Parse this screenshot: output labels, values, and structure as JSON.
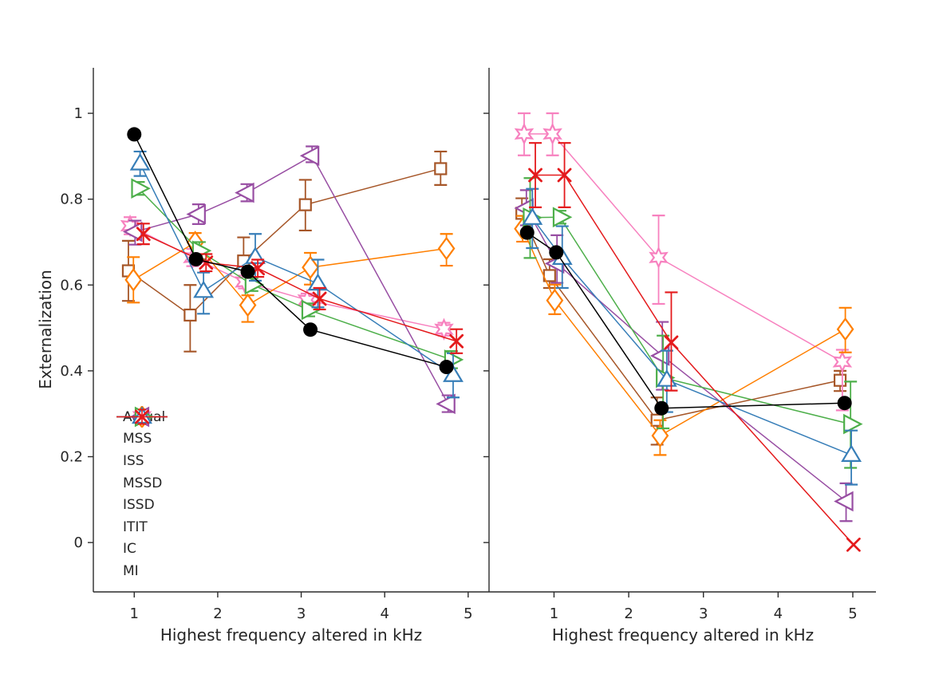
{
  "figure": {
    "ylabel": "Externalization",
    "xlabel": "Highest frequency altered in kHz",
    "background": "#ffffff",
    "text_color": "#262626",
    "axis_color": "#2b2b2b"
  },
  "axes": {
    "yticks": {
      "values": [
        0,
        0.2,
        0.4,
        0.6,
        0.8,
        1
      ],
      "labels": [
        "0",
        "0.2",
        "0.4",
        "0.6",
        "0.8",
        "1"
      ]
    },
    "xticks": {
      "values": [
        1,
        2,
        3,
        4,
        5
      ],
      "labels": [
        "1",
        "2",
        "3",
        "4",
        "5"
      ]
    },
    "ylim": [
      -0.115,
      1.106
    ],
    "grid": false,
    "box": false
  },
  "legend": {
    "position": "lower-left-of-left-panel",
    "items": [
      "Actual",
      "MSS",
      "ISS",
      "MSSD",
      "ISSD",
      "ITIT",
      "IC",
      "MI"
    ]
  },
  "chart_data": [
    {
      "panel": "left",
      "type": "line",
      "xlabel": "Highest frequency altered in kHz",
      "ylabel": "Externalization",
      "xlim": [
        0.51,
        5.25
      ],
      "series": [
        {
          "name": "MSS",
          "color": "#A65628",
          "marker": "square",
          "x": [
            0.93,
            1.67,
            2.31,
            3.05,
            4.67
          ],
          "y": [
            0.633,
            0.53,
            0.656,
            0.787,
            0.871
          ],
          "err_hi": [
            0.07,
            0.07,
            0.055,
            0.058,
            0.04
          ],
          "err_lo": [
            0.07,
            0.085,
            0.055,
            0.06,
            0.038
          ]
        },
        {
          "name": "ISS",
          "color": "#F781BF",
          "marker": "star6",
          "x": [
            0.95,
            1.7,
            2.32,
            3.07,
            4.71
          ],
          "y": [
            0.738,
            0.664,
            0.607,
            0.565,
            0.497
          ],
          "err_hi": [
            0.02,
            0.02,
            0.015,
            0.015,
            0.015
          ],
          "err_lo": [
            0.02,
            0.02,
            0.015,
            0.015,
            0.015
          ]
        },
        {
          "name": "MSSD",
          "color": "#FF7F00",
          "marker": "diamond",
          "x": [
            0.99,
            1.73,
            2.36,
            3.11,
            4.74
          ],
          "y": [
            0.612,
            0.699,
            0.553,
            0.641,
            0.685
          ],
          "err_hi": [
            0.053,
            0.022,
            0.023,
            0.034,
            0.034
          ],
          "err_lo": [
            0.053,
            0.042,
            0.039,
            0.04,
            0.04
          ]
        },
        {
          "name": "ISSD",
          "color": "#984EA3",
          "marker": "tri-left",
          "x": [
            1.01,
            1.77,
            2.35,
            3.13,
            4.76
          ],
          "y": [
            0.724,
            0.765,
            0.815,
            0.901,
            0.323
          ],
          "err_hi": [
            0.026,
            0.023,
            0.02,
            0.022,
            0.02
          ],
          "err_lo": [
            0.03,
            0.023,
            0.02,
            0.015,
            0.019
          ]
        },
        {
          "name": "ITIT",
          "color": "#4DAF4A",
          "marker": "tri-right",
          "x": [
            1.05,
            1.78,
            2.41,
            3.09,
            4.8
          ],
          "y": [
            0.825,
            0.68,
            0.601,
            0.542,
            0.426
          ],
          "err_hi": [
            0.015,
            0.02,
            0.015,
            0.015,
            0.02
          ],
          "err_lo": [
            0.015,
            0.02,
            0.015,
            0.015,
            0.02
          ]
        },
        {
          "name": "IC",
          "color": "#377EB8",
          "marker": "tri-up",
          "x": [
            1.07,
            1.83,
            2.45,
            3.2,
            4.82
          ],
          "y": [
            0.883,
            0.586,
            0.665,
            0.603,
            0.39
          ],
          "err_hi": [
            0.028,
            0.043,
            0.054,
            0.056,
            0.051
          ],
          "err_lo": [
            0.029,
            0.053,
            0.055,
            0.055,
            0.052
          ]
        },
        {
          "name": "MI",
          "color": "#E41A1C",
          "marker": "x",
          "x": [
            1.11,
            1.86,
            2.48,
            3.22,
            4.86
          ],
          "y": [
            0.719,
            0.652,
            0.639,
            0.568,
            0.469
          ],
          "err_hi": [
            0.024,
            0.02,
            0.02,
            0.025,
            0.028
          ],
          "err_lo": [
            0.024,
            0.02,
            0.02,
            0.025,
            0.028
          ]
        },
        {
          "name": "Actual",
          "color": "#000000",
          "marker": "circle",
          "x": [
            1.0,
            1.74,
            2.36,
            3.11,
            4.74
          ],
          "y": [
            0.951,
            0.66,
            0.631,
            0.496,
            0.409
          ],
          "err_hi": [
            0,
            0,
            0,
            0,
            0
          ],
          "err_lo": [
            0,
            0,
            0,
            0,
            0
          ]
        }
      ]
    },
    {
      "panel": "right",
      "type": "line",
      "xlabel": "Highest frequency altered in kHz",
      "xlim": [
        0.13,
        5.31
      ],
      "series": [
        {
          "name": "MSS",
          "color": "#A65628",
          "marker": "square",
          "x": [
            0.57,
            0.94,
            2.38,
            4.83
          ],
          "y": [
            0.767,
            0.622,
            0.285,
            0.378
          ],
          "err_hi": [
            0.035,
            0.038,
            0.053,
            0.022
          ],
          "err_lo": [
            0.038,
            0.029,
            0.057,
            0.025
          ]
        },
        {
          "name": "ISS",
          "color": "#F781BF",
          "marker": "star6",
          "x": [
            0.6,
            0.98,
            2.4,
            4.86
          ],
          "y": [
            0.952,
            0.952,
            0.664,
            0.421
          ],
          "err_hi": [
            0.048,
            0.048,
            0.098,
            0.028
          ],
          "err_lo": [
            0.05,
            0.05,
            0.108,
            0.113
          ]
        },
        {
          "name": "MSSD",
          "color": "#FF7F00",
          "marker": "diamond",
          "x": [
            0.58,
            1.01,
            2.42,
            4.9
          ],
          "y": [
            0.731,
            0.564,
            0.249,
            0.497
          ],
          "err_hi": [
            0.03,
            0.037,
            0.036,
            0.05
          ],
          "err_lo": [
            0.03,
            0.032,
            0.045,
            0.054
          ]
        },
        {
          "name": "ISSD",
          "color": "#984EA3",
          "marker": "tri-left",
          "x": [
            0.63,
            1.04,
            2.45,
            4.91
          ],
          "y": [
            0.779,
            0.65,
            0.435,
            0.096
          ],
          "err_hi": [
            0.042,
            0.066,
            0.079,
            0.042
          ],
          "err_lo": [
            0.04,
            0.045,
            0.079,
            0.046
          ]
        },
        {
          "name": "ITIT",
          "color": "#4DAF4A",
          "marker": "tri-right",
          "x": [
            0.68,
            1.08,
            2.46,
            4.97
          ],
          "y": [
            0.757,
            0.758,
            0.384,
            0.276
          ],
          "err_hi": [
            0.092,
            0.015,
            0.098,
            0.099
          ],
          "err_lo": [
            0.094,
            0.015,
            0.118,
            0.102
          ]
        },
        {
          "name": "IC",
          "color": "#377EB8",
          "marker": "tri-up",
          "x": [
            0.71,
            1.11,
            2.51,
            4.98
          ],
          "y": [
            0.756,
            0.663,
            0.379,
            0.204
          ],
          "err_hi": [
            0.068,
            0.074,
            0.068,
            0.057
          ],
          "err_lo": [
            0.07,
            0.07,
            0.075,
            0.069
          ]
        },
        {
          "name": "MI",
          "color": "#E41A1C",
          "marker": "x",
          "x": [
            0.75,
            1.14,
            2.57,
            5.01
          ],
          "y": [
            0.856,
            0.856,
            0.466,
            -0.005
          ],
          "err_hi": [
            0.075,
            0.075,
            0.117,
            0
          ],
          "err_lo": [
            0.075,
            0.075,
            0.112,
            0
          ]
        },
        {
          "name": "Actual",
          "color": "#000000",
          "marker": "circle",
          "x": [
            0.64,
            1.03,
            2.44,
            4.89
          ],
          "y": [
            0.722,
            0.676,
            0.313,
            0.325
          ],
          "err_hi": [
            0,
            0,
            0,
            0
          ],
          "err_lo": [
            0,
            0,
            0,
            0
          ]
        }
      ]
    }
  ]
}
